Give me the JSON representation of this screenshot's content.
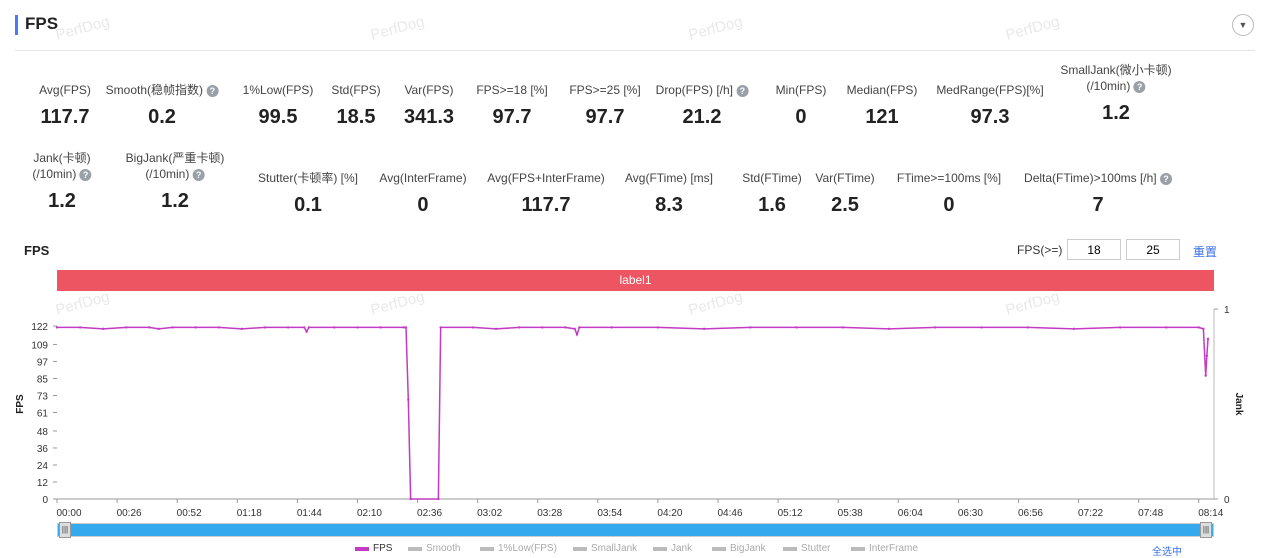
{
  "header": {
    "title": "FPS",
    "collapse_icon": "chevron-down-icon"
  },
  "watermark": "PerfDog",
  "stats_row1": [
    {
      "label": "Avg(FPS)",
      "value": "117.7",
      "help": false
    },
    {
      "label": "Smooth(稳帧指数)",
      "value": "0.2",
      "help": true
    },
    {
      "label": "1%Low(FPS)",
      "value": "99.5",
      "help": false
    },
    {
      "label": "Std(FPS)",
      "value": "18.5",
      "help": false
    },
    {
      "label": "Var(FPS)",
      "value": "341.3",
      "help": false
    },
    {
      "label": "FPS>=18 [%]",
      "value": "97.7",
      "help": false
    },
    {
      "label": "FPS>=25 [%]",
      "value": "97.7",
      "help": false
    },
    {
      "label": "Drop(FPS) [/h]",
      "value": "21.2",
      "help": true
    },
    {
      "label": "Min(FPS)",
      "value": "0",
      "help": false
    },
    {
      "label": "Median(FPS)",
      "value": "121",
      "help": false
    },
    {
      "label": "MedRange(FPS)[%]",
      "value": "97.3",
      "help": false
    },
    {
      "label": "SmallJank(微小卡顿)",
      "label2": "(/10min)",
      "value": "1.2",
      "help": true
    }
  ],
  "stats_row2": [
    {
      "label": "Jank(卡顿)",
      "label2": "(/10min)",
      "value": "1.2",
      "help": true
    },
    {
      "label": "BigJank(严重卡顿)",
      "label2": "(/10min)",
      "value": "1.2",
      "help": true
    },
    {
      "label": "Stutter(卡顿率) [%]",
      "value": "0.1"
    },
    {
      "label": "Avg(InterFrame)",
      "value": "0"
    },
    {
      "label": "Avg(FPS+InterFrame)",
      "value": "117.7"
    },
    {
      "label": "Avg(FTime) [ms]",
      "value": "8.3"
    },
    {
      "label": "Std(FTime)",
      "value": "1.6"
    },
    {
      "label": "Var(FTime)",
      "value": "2.5"
    },
    {
      "label": "FTime>=100ms [%]",
      "value": "0"
    },
    {
      "label": "Delta(FTime)>100ms [/h]",
      "value": "7",
      "help": true
    }
  ],
  "chart_controls": {
    "title": "FPS",
    "threshold_label": "FPS(>=)",
    "threshold1": "18",
    "threshold2": "25",
    "reset": "重置",
    "label_bar": "label1",
    "select_all": "全选中"
  },
  "chart_data": {
    "type": "line",
    "ylabel": "FPS",
    "y2label": "Jank",
    "ylim": [
      0,
      134
    ],
    "y2lim": [
      0,
      1
    ],
    "yticks": [
      0,
      12,
      24,
      36,
      48,
      61,
      73,
      85,
      97,
      109,
      122
    ],
    "y2ticks": [
      0,
      1
    ],
    "xlim": [
      0,
      498
    ],
    "xticks": [
      "00:00",
      "00:26",
      "00:52",
      "01:18",
      "01:44",
      "02:10",
      "02:36",
      "03:02",
      "03:28",
      "03:54",
      "04:20",
      "04:46",
      "05:12",
      "05:38",
      "06:04",
      "06:30",
      "06:56",
      "07:22",
      "07:48",
      "08:14"
    ],
    "legend": [
      "FPS",
      "Smooth",
      "1%Low(FPS)",
      "SmallJank",
      "Jank",
      "BigJank",
      "Stutter",
      "InterFrame"
    ],
    "series": [
      {
        "name": "FPS",
        "color": "#c23bc2",
        "points": [
          [
            0,
            121
          ],
          [
            10,
            121
          ],
          [
            20,
            120
          ],
          [
            30,
            121
          ],
          [
            40,
            121
          ],
          [
            44,
            120
          ],
          [
            50,
            121
          ],
          [
            60,
            121
          ],
          [
            70,
            121
          ],
          [
            80,
            120
          ],
          [
            90,
            121
          ],
          [
            100,
            121
          ],
          [
            107,
            121
          ],
          [
            108,
            118
          ],
          [
            109,
            121
          ],
          [
            120,
            121
          ],
          [
            130,
            121
          ],
          [
            140,
            121
          ],
          [
            150,
            121
          ],
          [
            151,
            121
          ],
          [
            152,
            70
          ],
          [
            153,
            0
          ],
          [
            165,
            0
          ],
          [
            166,
            121
          ],
          [
            180,
            121
          ],
          [
            190,
            120
          ],
          [
            200,
            121
          ],
          [
            210,
            121
          ],
          [
            220,
            121
          ],
          [
            224,
            120
          ],
          [
            225,
            116
          ],
          [
            226,
            121
          ],
          [
            240,
            121
          ],
          [
            260,
            121
          ],
          [
            280,
            120
          ],
          [
            300,
            121
          ],
          [
            320,
            121
          ],
          [
            340,
            121
          ],
          [
            360,
            120
          ],
          [
            380,
            121
          ],
          [
            400,
            121
          ],
          [
            420,
            121
          ],
          [
            440,
            120
          ],
          [
            460,
            121
          ],
          [
            480,
            121
          ],
          [
            494,
            121
          ],
          [
            496,
            120
          ],
          [
            497,
            87
          ],
          [
            497.5,
            101
          ],
          [
            498,
            113
          ]
        ]
      }
    ]
  }
}
